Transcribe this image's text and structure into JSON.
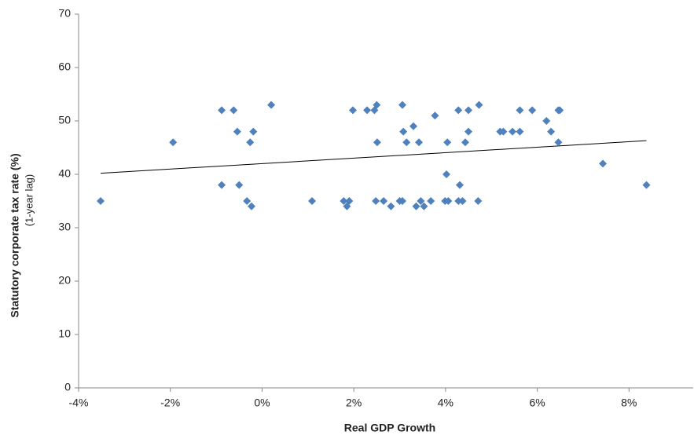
{
  "chart_data": {
    "type": "scatter",
    "x_label": "Real GDP Growth",
    "y_label": "Statutory corporate tax rate (%)",
    "y_label_sub": "(1-year lag)",
    "color": "#4f81bd",
    "x": [
      -3.52,
      -1.94,
      -0.88,
      -0.62,
      -0.54,
      -0.19,
      -0.26,
      -0.88,
      -0.5,
      -0.33,
      -0.23,
      0.2,
      1.09,
      1.78,
      1.85,
      1.9,
      1.98,
      2.29,
      2.45,
      2.5,
      2.51,
      2.48,
      2.65,
      2.81,
      3.0,
      3.06,
      3.06,
      3.08,
      3.15,
      3.3,
      3.36,
      3.42,
      3.46,
      3.53,
      3.68,
      3.77,
      3.99,
      4.06,
      4.02,
      4.04,
      4.28,
      4.28,
      4.31,
      4.37,
      4.43,
      4.5,
      4.5,
      4.73,
      4.71,
      5.19,
      5.26,
      5.46,
      5.62,
      5.62,
      5.89,
      6.2,
      6.3,
      6.46,
      6.49,
      6.46,
      7.43,
      8.38
    ],
    "values": [
      35,
      46,
      52,
      52,
      48,
      48,
      46,
      38,
      38,
      35,
      34,
      53,
      35,
      35,
      34,
      35,
      52,
      52,
      52,
      53,
      46,
      35,
      35,
      34,
      35,
      35,
      53,
      48,
      46,
      49,
      34,
      46,
      35,
      34,
      35,
      51,
      35,
      35,
      40,
      46,
      52,
      35,
      38,
      35,
      46,
      48,
      52,
      53,
      35,
      48,
      48,
      48,
      52,
      48,
      52,
      50,
      48,
      52,
      52,
      46,
      42,
      38
    ],
    "trendline": {
      "x": [
        -3.52,
        8.38
      ],
      "values": [
        40.2,
        46.3
      ]
    },
    "xlim": [
      -4,
      9.4
    ],
    "ylim": [
      0,
      70
    ],
    "xticks": [
      {
        "value": -4,
        "label": "-4%"
      },
      {
        "value": -2,
        "label": "-2%"
      },
      {
        "value": 0,
        "label": "0%"
      },
      {
        "value": 2,
        "label": "2%"
      },
      {
        "value": 4,
        "label": "4%"
      },
      {
        "value": 6,
        "label": "6%"
      },
      {
        "value": 8,
        "label": "8%"
      }
    ],
    "yticks": [
      0,
      10,
      20,
      30,
      40,
      50,
      60,
      70
    ],
    "grid": false
  }
}
